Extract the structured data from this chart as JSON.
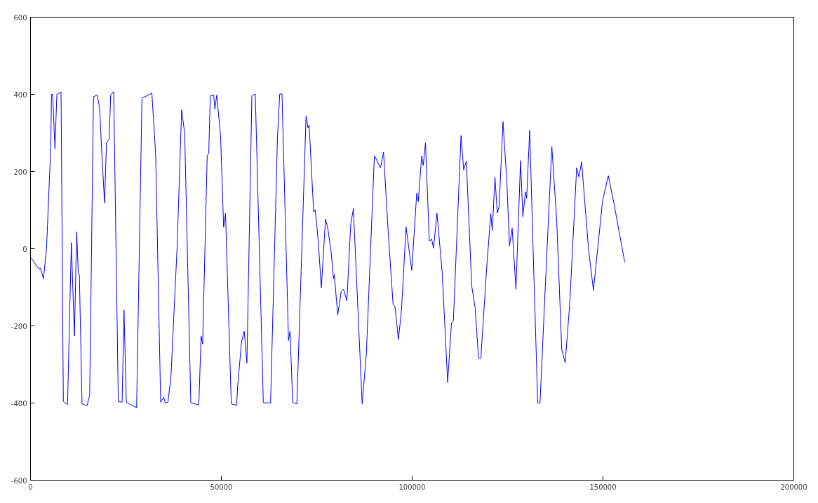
{
  "chart_data": {
    "type": "line",
    "x": [
      100,
      2200,
      2600,
      3400,
      4200,
      5300,
      5500,
      5800,
      6400,
      6900,
      8000,
      8600,
      9700,
      10700,
      11500,
      12100,
      12500,
      12800,
      13500,
      14800,
      15500,
      16500,
      17500,
      18100,
      18700,
      19400,
      19900,
      20600,
      21000,
      21800,
      23000,
      24000,
      24500,
      25100,
      27800,
      29200,
      31800,
      32800,
      34100,
      34900,
      35300,
      36000,
      36800,
      38400,
      39600,
      40400,
      42000,
      44100,
      44700,
      45100,
      46300,
      46700,
      47100,
      48000,
      48300,
      48800,
      49800,
      50600,
      51100,
      52600,
      54000,
      54300,
      55300,
      56000,
      56700,
      58000,
      58900,
      61000,
      62900,
      64700,
      65300,
      65900,
      67600,
      68000,
      68700,
      69800,
      72200,
      72700,
      73000,
      74200,
      74600,
      75400,
      76200,
      77300,
      77900,
      78800,
      79400,
      79600,
      80500,
      81400,
      82000,
      82900,
      83900,
      84600,
      86900,
      88000,
      90100,
      91700,
      92500,
      93700,
      95000,
      95500,
      96400,
      97200,
      98400,
      99900,
      101200,
      101600,
      102500,
      102900,
      103500,
      104500,
      105100,
      105600,
      106500,
      107900,
      109300,
      110300,
      110800,
      112800,
      113500,
      114200,
      115600,
      116500,
      117400,
      118000,
      119500,
      120600,
      121000,
      121700,
      122300,
      122800,
      123800,
      124800,
      125500,
      126200,
      127200,
      128400,
      129000,
      129700,
      130000,
      130800,
      131700,
      132900,
      133500,
      134900,
      136600,
      137900,
      139200,
      140100,
      141300,
      143100,
      143700,
      144400,
      146200,
      147500,
      149900,
      151400,
      152900,
      155700
    ],
    "series": [
      {
        "color": "#0000ff",
        "values": [
          -23,
          -53,
          -50,
          -78,
          2,
          262,
          400,
          400,
          259,
          400,
          406,
          -396,
          -404,
          16,
          -226,
          44,
          -59,
          -68,
          -402,
          -407,
          -380,
          394,
          398,
          365,
          244,
          119,
          274,
          284,
          398,
          407,
          -396,
          -398,
          -159,
          -398,
          -412,
          390,
          403,
          244,
          -398,
          -385,
          -399,
          -398,
          -332,
          1,
          360,
          298,
          -399,
          -405,
          -226,
          -247,
          241,
          247,
          396,
          398,
          362,
          398,
          292,
          56,
          92,
          -402,
          -406,
          -353,
          -241,
          -214,
          -296,
          396,
          401,
          -399,
          -400,
          286,
          401,
          401,
          -238,
          -214,
          -399,
          -402,
          344,
          313,
          321,
          95,
          101,
          19,
          -101,
          77,
          53,
          -11,
          -78,
          -67,
          -172,
          -111,
          -105,
          -135,
          62,
          104,
          -402,
          -272,
          241,
          210,
          250,
          47,
          -144,
          -150,
          -235,
          -159,
          56,
          -56,
          144,
          122,
          241,
          216,
          274,
          19,
          25,
          1,
          92,
          -65,
          -347,
          -193,
          -187,
          293,
          204,
          227,
          -96,
          -153,
          -284,
          -284,
          -53,
          91,
          47,
          186,
          92,
          110,
          329,
          177,
          7,
          53,
          -105,
          228,
          83,
          147,
          131,
          307,
          -5,
          -400,
          -400,
          -96,
          265,
          68,
          -262,
          -296,
          -141,
          210,
          186,
          225,
          1,
          -108,
          125,
          189,
          116,
          -35
        ]
      }
    ],
    "xlim": [
      0,
      200000
    ],
    "xticks": [
      0,
      50000,
      100000,
      150000,
      200000
    ],
    "ylim": [
      -600,
      600
    ],
    "yticks": [
      -600,
      -400,
      -200,
      0,
      200,
      400,
      600
    ],
    "grid": false
  }
}
